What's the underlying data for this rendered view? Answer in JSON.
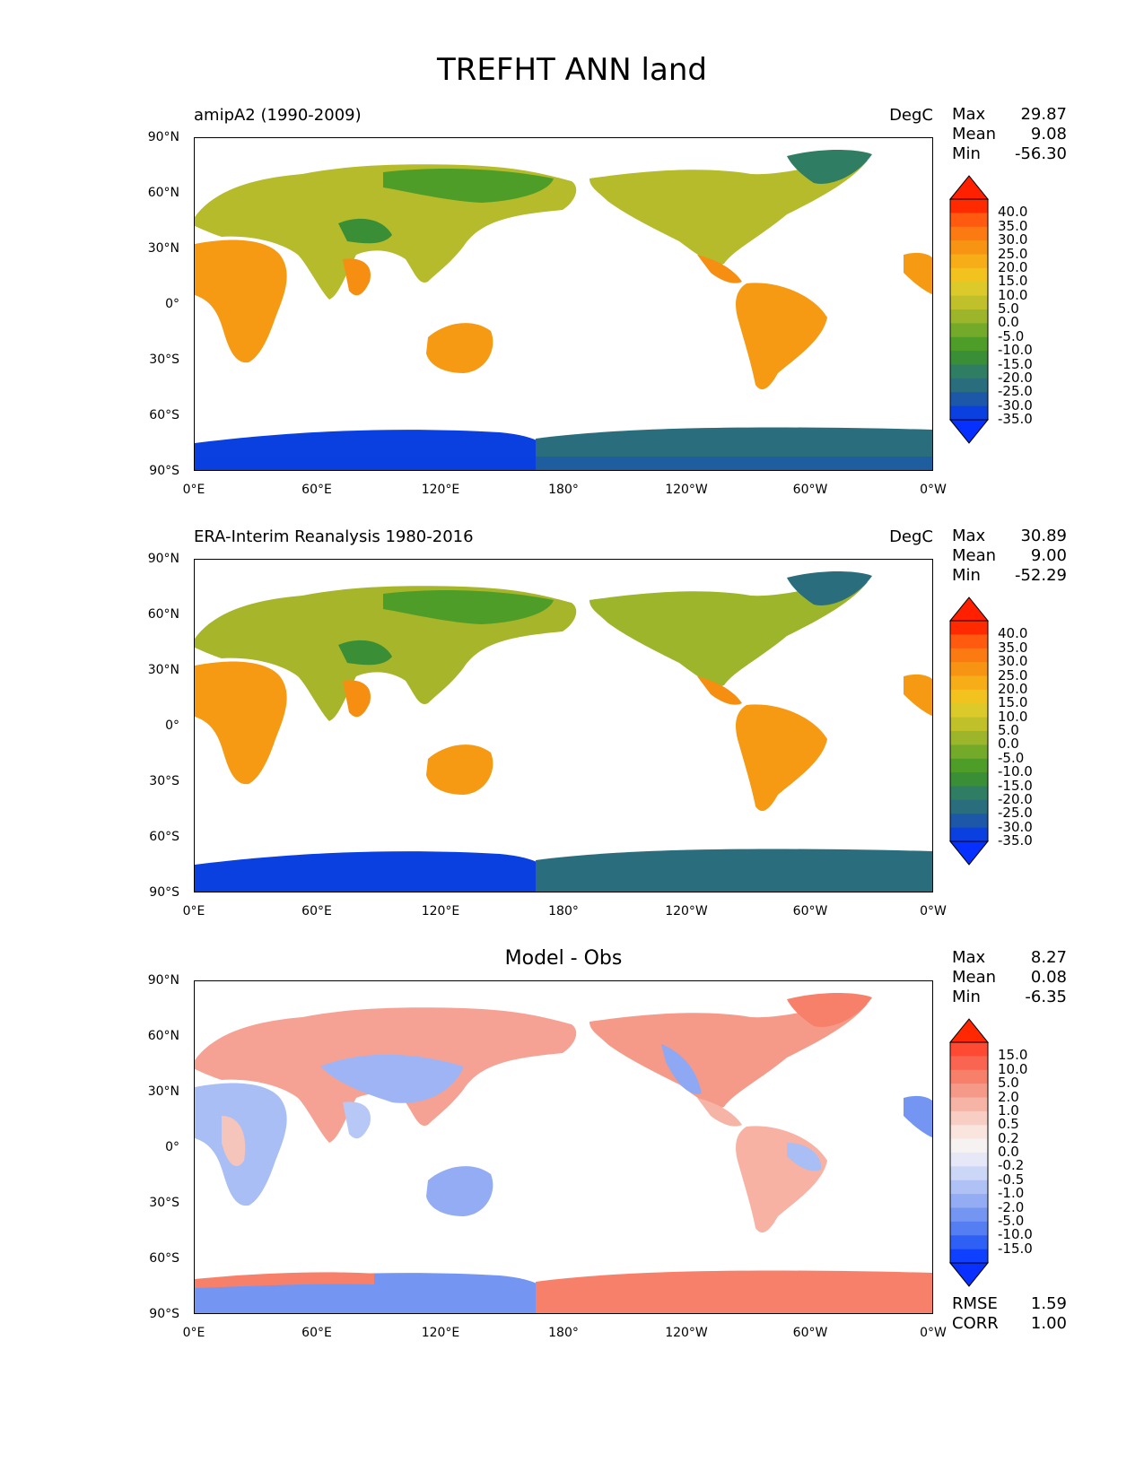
{
  "title": "TREFHT ANN land",
  "panels": [
    {
      "id": "model",
      "left_title": "amipA2 (1990-2009)",
      "center_title": "",
      "units": "DegC",
      "stats": {
        "max_label": "Max",
        "max": "29.87",
        "mean_label": "Mean",
        "mean": "9.08",
        "min_label": "Min",
        "min": "-56.30"
      },
      "colorbar_levels": [
        "40.0",
        "35.0",
        "30.0",
        "25.0",
        "20.0",
        "15.0",
        "10.0",
        "5.0",
        "0.0",
        "-5.0",
        "-10.0",
        "-15.0",
        "-20.0",
        "-25.0",
        "-30.0",
        "-35.0"
      ],
      "colorbar_colors": [
        "#ff2a00",
        "#ff5a10",
        "#fb7a12",
        "#f89414",
        "#f6ad18",
        "#f2c21f",
        "#dcca2a",
        "#bfc02a",
        "#9cb52a",
        "#73aa2a",
        "#4e9d28",
        "#3a8e36",
        "#2f7d62",
        "#2a6d7c",
        "#1d58a8",
        "#0a40e0"
      ],
      "colorbar_over": "#ff2000",
      "colorbar_under": "#0530ff"
    },
    {
      "id": "obs",
      "left_title": "ERA-Interim Reanalysis 1980-2016",
      "center_title": "",
      "units": "DegC",
      "stats": {
        "max_label": "Max",
        "max": "30.89",
        "mean_label": "Mean",
        "mean": "9.00",
        "min_label": "Min",
        "min": "-52.29"
      },
      "colorbar_levels": [
        "40.0",
        "35.0",
        "30.0",
        "25.0",
        "20.0",
        "15.0",
        "10.0",
        "5.0",
        "0.0",
        "-5.0",
        "-10.0",
        "-15.0",
        "-20.0",
        "-25.0",
        "-30.0",
        "-35.0"
      ],
      "colorbar_colors": [
        "#ff2a00",
        "#ff5a10",
        "#fb7a12",
        "#f89414",
        "#f6ad18",
        "#f2c21f",
        "#dcca2a",
        "#bfc02a",
        "#9cb52a",
        "#73aa2a",
        "#4e9d28",
        "#3a8e36",
        "#2f7d62",
        "#2a6d7c",
        "#1d58a8",
        "#0a40e0"
      ],
      "colorbar_over": "#ff2000",
      "colorbar_under": "#0530ff"
    },
    {
      "id": "diff",
      "left_title": "",
      "center_title": "Model - Obs",
      "units": "",
      "stats": {
        "max_label": "Max",
        "max": "8.27",
        "mean_label": "Mean",
        "mean": "0.08",
        "min_label": "Min",
        "min": "-6.35"
      },
      "colorbar_levels": [
        "15.0",
        "10.0",
        "5.0",
        "2.0",
        "1.0",
        "0.5",
        "0.2",
        "0.0",
        "-0.2",
        "-0.5",
        "-1.0",
        "-2.0",
        "-5.0",
        "-10.0",
        "-15.0"
      ],
      "colorbar_colors": [
        "#ff4a33",
        "#f96550",
        "#f7806a",
        "#f59a88",
        "#f5b4a6",
        "#f7cdc4",
        "#f9e4de",
        "#f6f2f2",
        "#e6e8f8",
        "#ccd6f7",
        "#b0c2f5",
        "#93acf3",
        "#7496f2",
        "#557ef2",
        "#2f60f6",
        "#1040ff"
      ],
      "colorbar_over": "#ff2800",
      "colorbar_under": "#0a30ff",
      "metrics": {
        "rmse_label": "RMSE",
        "rmse": "1.59",
        "corr_label": "CORR",
        "corr": "1.00"
      }
    }
  ],
  "lat_labels": [
    "90°N",
    "60°N",
    "30°N",
    "0°",
    "30°S",
    "60°S",
    "90°S"
  ],
  "lon_labels": [
    "0°E",
    "60°E",
    "120°E",
    "180°",
    "120°W",
    "60°W",
    "0°W"
  ]
}
